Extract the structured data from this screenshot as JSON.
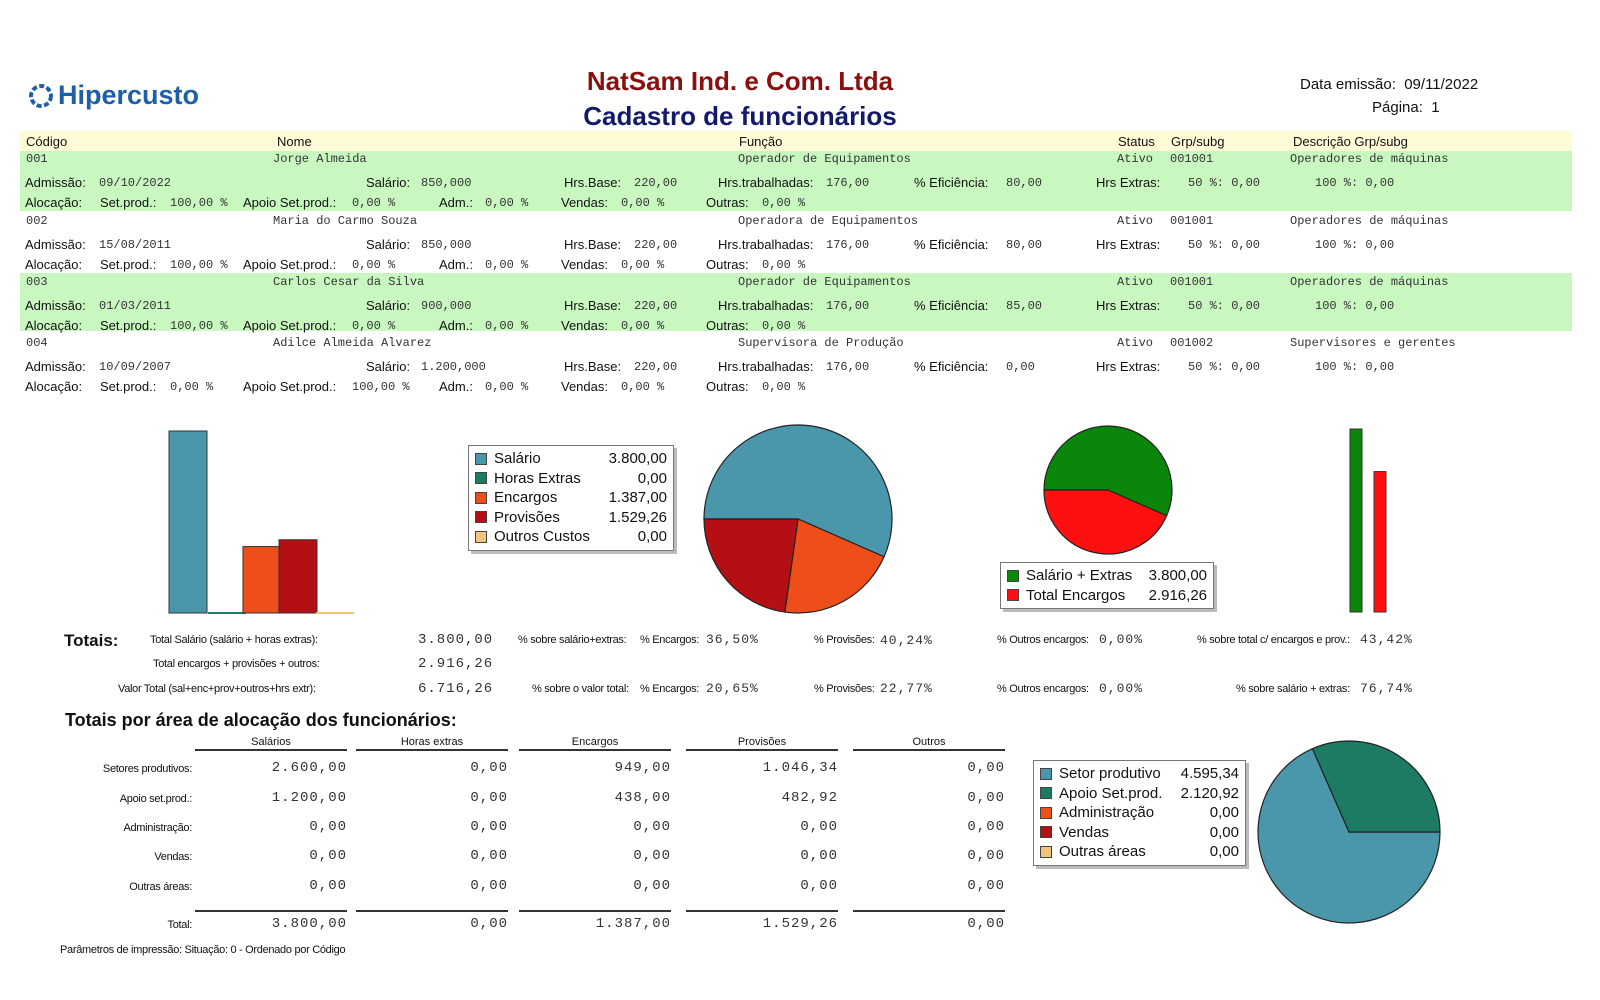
{
  "header": {
    "logo_text": "Hipercusto",
    "company": "NatSam Ind. e Com. Ltda",
    "title": "Cadastro de funcionários",
    "emission_label": "Data emissão:",
    "emission_date": "09/11/2022",
    "page_label": "Página:",
    "page_number": "1"
  },
  "columns": {
    "codigo": "Código",
    "nome": "Nome",
    "funcao": "Função",
    "status": "Status",
    "grp": "Grp/subg",
    "desc": "Descrição Grp/subg"
  },
  "labels": {
    "admissao": "Admissão:",
    "salario": "Salário:",
    "hrs_base": "Hrs.Base:",
    "hrs_trab": "Hrs.trabalhadas:",
    "eficiencia": "% Eficiência:",
    "hrs_extras": "Hrs Extras:",
    "alocacao": "Alocação:",
    "set_prod": "Set.prod.:",
    "apoio": "Apoio Set.prod.:",
    "adm": "Adm.:",
    "vendas": "Vendas:",
    "outras": "Outras:"
  },
  "employees": [
    {
      "codigo": "001",
      "nome": "Jorge Almeida",
      "funcao": "Operador de Equipamentos",
      "status": "Ativo",
      "grp": "001001",
      "desc": "Operadores de máquinas",
      "admissao": "09/10/2022",
      "salario": "850,000",
      "hrs_base": "220,00",
      "hrs_trab": "176,00",
      "eficiencia": "80,00",
      "extra50": "50 %: 0,00",
      "extra100": "100 %: 0,00",
      "set_prod": "100,00 %",
      "apoio": "0,00 %",
      "adm": "0,00 %",
      "vendas": "0,00 %",
      "outras": "0,00 %"
    },
    {
      "codigo": "002",
      "nome": "Maria do Carmo Souza",
      "funcao": "Operadora de Equipamentos",
      "status": "Ativo",
      "grp": "001001",
      "desc": "Operadores de máquinas",
      "admissao": "15/08/2011",
      "salario": "850,000",
      "hrs_base": "220,00",
      "hrs_trab": "176,00",
      "eficiencia": "80,00",
      "extra50": "50 %: 0,00",
      "extra100": "100 %: 0,00",
      "set_prod": "100,00 %",
      "apoio": "0,00 %",
      "adm": "0,00 %",
      "vendas": "0,00 %",
      "outras": "0,00 %"
    },
    {
      "codigo": "003",
      "nome": "Carlos Cesar da Silva",
      "funcao": "Operador de Equipamentos",
      "status": "Ativo",
      "grp": "001001",
      "desc": "Operadores de máquinas",
      "admissao": "01/03/2011",
      "salario": "900,000",
      "hrs_base": "220,00",
      "hrs_trab": "176,00",
      "eficiencia": "85,00",
      "extra50": "50 %: 0,00",
      "extra100": "100 %: 0,00",
      "set_prod": "100,00 %",
      "apoio": "0,00 %",
      "adm": "0,00 %",
      "vendas": "0,00 %",
      "outras": "0,00 %"
    },
    {
      "codigo": "004",
      "nome": "Adilce Almeida Alvarez",
      "funcao": "Supervisora de Produção",
      "status": "Ativo",
      "grp": "001002",
      "desc": "Supervisores e gerentes",
      "admissao": "10/09/2007",
      "salario": "1.200,000",
      "hrs_base": "220,00",
      "hrs_trab": "176,00",
      "eficiencia": "0,00",
      "extra50": "50 %: 0,00",
      "extra100": "100 %: 0,00",
      "set_prod": "0,00 %",
      "apoio": "100,00 %",
      "adm": "0,00 %",
      "vendas": "0,00 %",
      "outras": "0,00 %"
    }
  ],
  "colors": {
    "salario": "#4a96aa",
    "horas_extras": "#1d7a63",
    "encargos": "#ee4e1a",
    "provisoes": "#b30f14",
    "outros": "#f5c27a",
    "green": "#0a870a",
    "red": "#ff1010",
    "header_bg": "#fffbd6",
    "row_bg": "#c8f8c0"
  },
  "chart_data": [
    {
      "type": "bar",
      "series": [
        {
          "name": "Salário",
          "values": [
            3800.0
          ]
        },
        {
          "name": "Horas Extras",
          "values": [
            0.0
          ]
        },
        {
          "name": "Encargos",
          "values": [
            1387.0
          ]
        },
        {
          "name": "Provisões",
          "values": [
            1529.26
          ]
        },
        {
          "name": "Outros Custos",
          "values": [
            0.0
          ]
        }
      ]
    },
    {
      "type": "pie",
      "labels": [
        "Salário",
        "Horas Extras",
        "Encargos",
        "Provisões",
        "Outros Custos"
      ],
      "values": [
        3800.0,
        0.0,
        1387.0,
        1529.26,
        0.0
      ],
      "value_labels": [
        "3.800,00",
        "0,00",
        "1.387,00",
        "1.529,26",
        "0,00"
      ]
    },
    {
      "type": "pie",
      "labels": [
        "Salário + Extras",
        "Total Encargos"
      ],
      "values": [
        3800.0,
        2916.26
      ],
      "value_labels": [
        "3.800,00",
        "2.916,26"
      ]
    },
    {
      "type": "bar",
      "series": [
        {
          "name": "Salário + Extras",
          "values": [
            3800.0
          ]
        },
        {
          "name": "Total Encargos",
          "values": [
            2916.26
          ]
        }
      ]
    },
    {
      "type": "pie",
      "labels": [
        "Setor produtivo",
        "Apoio Set.prod.",
        "Administração",
        "Vendas",
        "Outras áreas"
      ],
      "values": [
        4595.34,
        2120.92,
        0.0,
        0.0,
        0.0
      ],
      "value_labels": [
        "4.595,34",
        "2.120,92",
        "0,00",
        "0,00",
        "0,00"
      ]
    }
  ],
  "totals": {
    "title": "Totais:",
    "l1": "Total Salário (salário + horas extras):",
    "v1": "3.800,00",
    "l2": "Total encargos + provisões + outros:",
    "v2": "2.916,26",
    "l3": "Valor Total (sal+enc+prov+outros+hrs extr):",
    "v3": "6.716,26",
    "r1a": "% sobre salário+extras:",
    "r1b": "% Encargos:",
    "r1bv": "36,50%",
    "r1c": "% Provisões:",
    "r1cv": "40,24%",
    "r1d": "% Outros encargos:",
    "r1dv": "0,00%",
    "r1e": "% sobre total c/ encargos e prov.:",
    "r1ev": "43,42%",
    "r3a": "% sobre o valor total:",
    "r3b": "% Encargos:",
    "r3bv": "20,65%",
    "r3c": "% Provisões:",
    "r3cv": "22,77%",
    "r3d": "% Outros encargos:",
    "r3dv": "0,00%",
    "r3e": "% sobre salário + extras:",
    "r3ev": "76,74%"
  },
  "area": {
    "title": "Totais por área de alocação dos funcionários:",
    "cols": [
      "Salários",
      "Horas extras",
      "Encargos",
      "Provisões",
      "Outros"
    ],
    "rows": [
      "Setores produtivos:",
      "Apoio set.prod.:",
      "Administração:",
      "Vendas:",
      "Outras áreas:"
    ],
    "total_label": "Total:",
    "cells": [
      [
        "2.600,00",
        "0,00",
        "949,00",
        "1.046,34",
        "0,00"
      ],
      [
        "1.200,00",
        "0,00",
        "438,00",
        "482,92",
        "0,00"
      ],
      [
        "0,00",
        "0,00",
        "0,00",
        "0,00",
        "0,00"
      ],
      [
        "0,00",
        "0,00",
        "0,00",
        "0,00",
        "0,00"
      ],
      [
        "0,00",
        "0,00",
        "0,00",
        "0,00",
        "0,00"
      ]
    ],
    "totals": [
      "3.800,00",
      "0,00",
      "1.387,00",
      "1.529,26",
      "0,00"
    ]
  },
  "footer": "Parâmetros de impressão: Situação: 0 - Ordenado por Código"
}
